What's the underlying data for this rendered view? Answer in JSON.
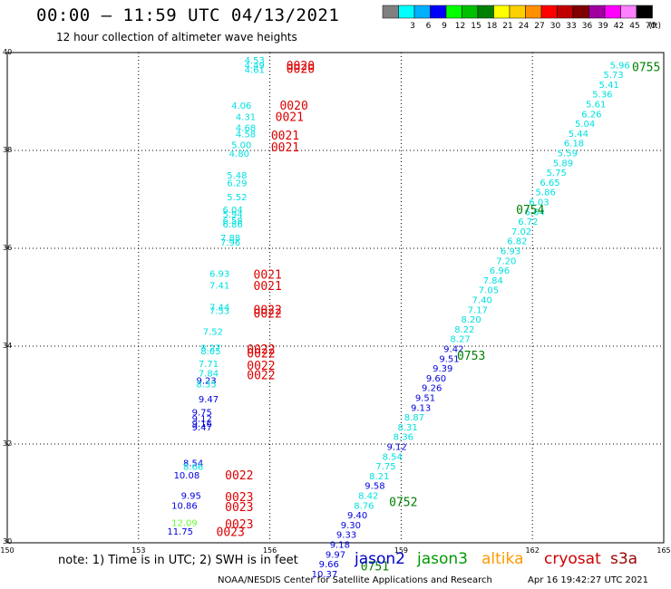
{
  "header": {
    "title": "00:00 – 11:59 UTC 04/13/2021",
    "subtitle": "12 hour collection of altimeter wave heights"
  },
  "legend": {
    "bins": [
      {
        "color": "#808080",
        "label": ""
      },
      {
        "color": "#00ffff",
        "label": "3"
      },
      {
        "color": "#00b0ff",
        "label": "6"
      },
      {
        "color": "#0000ff",
        "label": "9"
      },
      {
        "color": "#00ff00",
        "label": "12"
      },
      {
        "color": "#00c000",
        "label": "15"
      },
      {
        "color": "#008000",
        "label": "18"
      },
      {
        "color": "#ffff00",
        "label": "21"
      },
      {
        "color": "#ffd000",
        "label": "24"
      },
      {
        "color": "#ff9000",
        "label": "27"
      },
      {
        "color": "#ff0000",
        "label": "30"
      },
      {
        "color": "#c00000",
        "label": "33"
      },
      {
        "color": "#800000",
        "label": "36"
      },
      {
        "color": "#a000a0",
        "label": "39"
      },
      {
        "color": "#ff00ff",
        "label": "42"
      },
      {
        "color": "#ff80ff",
        "label": "45"
      },
      {
        "color": "#000000",
        "label": "70"
      }
    ],
    "unit": "(ft)"
  },
  "note": "note: 1) Time is in UTC; 2) SWH is in feet",
  "satellites": [
    {
      "name": "jason2",
      "color": "#0000cc"
    },
    {
      "name": "jason3",
      "color": "#009900"
    },
    {
      "name": "altika",
      "color": "#ff9900"
    },
    {
      "name": "cryosat",
      "color": "#cc0000"
    },
    {
      "name": "s3a",
      "color": "#990000"
    }
  ],
  "footer": {
    "left": "NOAA/NESDIS Center for Satellite Applications and Research",
    "right": "Apr 16 19:42:27 UTC 2021"
  },
  "chart_data": {
    "type": "scatter",
    "xlim": [
      150,
      165
    ],
    "ylim": [
      30,
      40
    ],
    "x_ticks": [
      "150",
      "153",
      "156",
      "159",
      "162",
      "165"
    ],
    "y_ticks": [
      "30",
      "32",
      "34",
      "36",
      "38",
      "40"
    ],
    "grid": true,
    "swh_points": [
      {
        "lon": 155.65,
        "lat": 39.78,
        "swh": "4.53",
        "color": "#00e0e0"
      },
      {
        "lon": 155.65,
        "lat": 39.68,
        "swh": "4.49",
        "color": "#00e0e0"
      },
      {
        "lon": 155.65,
        "lat": 39.58,
        "swh": "4.61",
        "color": "#00e0e0"
      },
      {
        "lon": 155.35,
        "lat": 38.85,
        "swh": "4.06",
        "color": "#00e0e0"
      },
      {
        "lon": 155.45,
        "lat": 38.62,
        "swh": "4.31",
        "color": "#00e0e0"
      },
      {
        "lon": 155.45,
        "lat": 38.4,
        "swh": "4.68",
        "color": "#00e0e0"
      },
      {
        "lon": 155.45,
        "lat": 38.27,
        "swh": "4.58",
        "color": "#00e0e0"
      },
      {
        "lon": 155.35,
        "lat": 38.05,
        "swh": "5.00",
        "color": "#00e0e0"
      },
      {
        "lon": 155.3,
        "lat": 37.87,
        "swh": "4.80",
        "color": "#00e0e0"
      },
      {
        "lon": 155.25,
        "lat": 37.43,
        "swh": "5.48",
        "color": "#00e0e0"
      },
      {
        "lon": 155.25,
        "lat": 37.27,
        "swh": "6.29",
        "color": "#00e0e0"
      },
      {
        "lon": 155.25,
        "lat": 36.98,
        "swh": "5.52",
        "color": "#00e0e0"
      },
      {
        "lon": 155.15,
        "lat": 36.72,
        "swh": "6.04",
        "color": "#00e0e0"
      },
      {
        "lon": 155.15,
        "lat": 36.63,
        "swh": "5.94",
        "color": "#00e0e0"
      },
      {
        "lon": 155.15,
        "lat": 36.5,
        "swh": "6.58",
        "color": "#00e0e0"
      },
      {
        "lon": 155.15,
        "lat": 36.43,
        "swh": "6.86",
        "color": "#00e0e0"
      },
      {
        "lon": 155.1,
        "lat": 36.15,
        "swh": "7.88",
        "color": "#00e0e0"
      },
      {
        "lon": 155.1,
        "lat": 36.06,
        "swh": "7.96",
        "color": "#00e0e0"
      },
      {
        "lon": 154.85,
        "lat": 35.42,
        "swh": "6.93",
        "color": "#00e0e0"
      },
      {
        "lon": 154.85,
        "lat": 35.18,
        "swh": "7.41",
        "color": "#00e0e0"
      },
      {
        "lon": 154.85,
        "lat": 34.73,
        "swh": "7.44",
        "color": "#00e0e0"
      },
      {
        "lon": 154.85,
        "lat": 34.66,
        "swh": "7.53",
        "color": "#00e0e0"
      },
      {
        "lon": 154.7,
        "lat": 34.23,
        "swh": "7.52",
        "color": "#00e0e0"
      },
      {
        "lon": 154.65,
        "lat": 33.9,
        "swh": "8.27",
        "color": "#00e0e0"
      },
      {
        "lon": 154.65,
        "lat": 33.83,
        "swh": "8.05",
        "color": "#00e0e0"
      },
      {
        "lon": 154.6,
        "lat": 33.57,
        "swh": "7.71",
        "color": "#00e0e0"
      },
      {
        "lon": 154.6,
        "lat": 33.38,
        "swh": "7.84",
        "color": "#00e0e0"
      },
      {
        "lon": 154.55,
        "lat": 33.23,
        "swh": "9.23",
        "color": "#0000dd"
      },
      {
        "lon": 154.55,
        "lat": 33.16,
        "swh": "8.35",
        "color": "#00e0e0"
      },
      {
        "lon": 154.6,
        "lat": 32.85,
        "swh": "9.47",
        "color": "#0000dd"
      },
      {
        "lon": 154.45,
        "lat": 32.58,
        "swh": "9.75",
        "color": "#0000dd"
      },
      {
        "lon": 154.45,
        "lat": 32.45,
        "swh": "9.12",
        "color": "#0000dd"
      },
      {
        "lon": 154.45,
        "lat": 32.35,
        "swh": "9.16",
        "color": "#0000dd"
      },
      {
        "lon": 154.45,
        "lat": 32.28,
        "swh": "9.47",
        "color": "#0000dd"
      },
      {
        "lon": 154.25,
        "lat": 31.55,
        "swh": "8.54",
        "color": "#0000dd"
      },
      {
        "lon": 154.25,
        "lat": 31.47,
        "swh": "8.66",
        "color": "#00e0e0"
      },
      {
        "lon": 154.1,
        "lat": 31.3,
        "swh": "10.08",
        "color": "#0000dd"
      },
      {
        "lon": 154.2,
        "lat": 30.88,
        "swh": "9.95",
        "color": "#0000dd"
      },
      {
        "lon": 154.05,
        "lat": 30.68,
        "swh": "10.86",
        "color": "#0000dd"
      },
      {
        "lon": 154.05,
        "lat": 30.32,
        "swh": "12.09",
        "color": "#66ff33"
      },
      {
        "lon": 153.95,
        "lat": 30.15,
        "swh": "11.75",
        "color": "#0000dd"
      },
      {
        "lon": 164.0,
        "lat": 39.68,
        "swh": "5.96",
        "color": "#00e0e0"
      },
      {
        "lon": 163.85,
        "lat": 39.48,
        "swh": "5.73",
        "color": "#00e0e0"
      },
      {
        "lon": 163.75,
        "lat": 39.28,
        "swh": "5.41",
        "color": "#00e0e0"
      },
      {
        "lon": 163.6,
        "lat": 39.08,
        "swh": "5.36",
        "color": "#00e0e0"
      },
      {
        "lon": 163.45,
        "lat": 38.88,
        "swh": "5.61",
        "color": "#00e0e0"
      },
      {
        "lon": 163.35,
        "lat": 38.68,
        "swh": "6.26",
        "color": "#00e0e0"
      },
      {
        "lon": 163.2,
        "lat": 38.48,
        "swh": "5.04",
        "color": "#00e0e0"
      },
      {
        "lon": 163.05,
        "lat": 38.28,
        "swh": "5.44",
        "color": "#00e0e0"
      },
      {
        "lon": 162.95,
        "lat": 38.08,
        "swh": "6.18",
        "color": "#00e0e0"
      },
      {
        "lon": 162.8,
        "lat": 37.88,
        "swh": "5.59",
        "color": "#00e0e0"
      },
      {
        "lon": 162.7,
        "lat": 37.68,
        "swh": "5.89",
        "color": "#00e0e0"
      },
      {
        "lon": 162.55,
        "lat": 37.48,
        "swh": "5.75",
        "color": "#00e0e0"
      },
      {
        "lon": 162.4,
        "lat": 37.28,
        "swh": "6.65",
        "color": "#00e0e0"
      },
      {
        "lon": 162.3,
        "lat": 37.08,
        "swh": "5.86",
        "color": "#00e0e0"
      },
      {
        "lon": 162.15,
        "lat": 36.88,
        "swh": "6.03",
        "color": "#00e0e0"
      },
      {
        "lon": 162.05,
        "lat": 36.68,
        "swh": "6.64",
        "color": "#00e0e0"
      },
      {
        "lon": 161.9,
        "lat": 36.48,
        "swh": "6.72",
        "color": "#00e0e0"
      },
      {
        "lon": 161.75,
        "lat": 36.28,
        "swh": "7.02",
        "color": "#00e0e0"
      },
      {
        "lon": 161.65,
        "lat": 36.08,
        "swh": "6.82",
        "color": "#00e0e0"
      },
      {
        "lon": 161.5,
        "lat": 35.88,
        "swh": "6.93",
        "color": "#00e0e0"
      },
      {
        "lon": 161.4,
        "lat": 35.68,
        "swh": "7.20",
        "color": "#00e0e0"
      },
      {
        "lon": 161.25,
        "lat": 35.48,
        "swh": "6.96",
        "color": "#00e0e0"
      },
      {
        "lon": 161.1,
        "lat": 35.28,
        "swh": "7.84",
        "color": "#00e0e0"
      },
      {
        "lon": 161.0,
        "lat": 35.08,
        "swh": "7.05",
        "color": "#00e0e0"
      },
      {
        "lon": 160.85,
        "lat": 34.88,
        "swh": "7.40",
        "color": "#00e0e0"
      },
      {
        "lon": 160.75,
        "lat": 34.68,
        "swh": "7.17",
        "color": "#00e0e0"
      },
      {
        "lon": 160.6,
        "lat": 34.48,
        "swh": "8.20",
        "color": "#00e0e0"
      },
      {
        "lon": 160.45,
        "lat": 34.28,
        "swh": "8.22",
        "color": "#00e0e0"
      },
      {
        "lon": 160.35,
        "lat": 34.08,
        "swh": "8.27",
        "color": "#00e0e0"
      },
      {
        "lon": 160.2,
        "lat": 33.88,
        "swh": "9.42",
        "color": "#0000dd"
      },
      {
        "lon": 160.1,
        "lat": 33.68,
        "swh": "9.51",
        "color": "#0000dd"
      },
      {
        "lon": 159.95,
        "lat": 33.48,
        "swh": "9.39",
        "color": "#0000dd"
      },
      {
        "lon": 159.8,
        "lat": 33.28,
        "swh": "9.60",
        "color": "#0000dd"
      },
      {
        "lon": 159.7,
        "lat": 33.08,
        "swh": "9.26",
        "color": "#0000dd"
      },
      {
        "lon": 159.55,
        "lat": 32.88,
        "swh": "9.51",
        "color": "#0000dd"
      },
      {
        "lon": 159.45,
        "lat": 32.68,
        "swh": "9.13",
        "color": "#0000dd"
      },
      {
        "lon": 159.3,
        "lat": 32.48,
        "swh": "8.87",
        "color": "#00e0e0"
      },
      {
        "lon": 159.15,
        "lat": 32.28,
        "swh": "8.31",
        "color": "#00e0e0"
      },
      {
        "lon": 159.05,
        "lat": 32.08,
        "swh": "8.36",
        "color": "#00e0e0"
      },
      {
        "lon": 158.9,
        "lat": 31.88,
        "swh": "9.12",
        "color": "#0000dd"
      },
      {
        "lon": 158.8,
        "lat": 31.68,
        "swh": "8.54",
        "color": "#00e0e0"
      },
      {
        "lon": 158.65,
        "lat": 31.48,
        "swh": "7.75",
        "color": "#00e0e0"
      },
      {
        "lon": 158.5,
        "lat": 31.28,
        "swh": "8.21",
        "color": "#00e0e0"
      },
      {
        "lon": 158.4,
        "lat": 31.08,
        "swh": "9.58",
        "color": "#0000dd"
      },
      {
        "lon": 158.25,
        "lat": 30.88,
        "swh": "8.42",
        "color": "#00e0e0"
      },
      {
        "lon": 158.15,
        "lat": 30.68,
        "swh": "8.76",
        "color": "#00e0e0"
      },
      {
        "lon": 158.0,
        "lat": 30.48,
        "swh": "9.40",
        "color": "#0000dd"
      },
      {
        "lon": 157.85,
        "lat": 30.28,
        "swh": "9.30",
        "color": "#0000dd"
      },
      {
        "lon": 157.75,
        "lat": 30.08,
        "swh": "9.33",
        "color": "#0000dd"
      },
      {
        "lon": 157.6,
        "lat": 29.88,
        "swh": "9.18",
        "color": "#0000dd"
      },
      {
        "lon": 157.5,
        "lat": 29.68,
        "swh": "9.97",
        "color": "#0000dd"
      },
      {
        "lon": 157.35,
        "lat": 29.48,
        "swh": "9.66",
        "color": "#0000dd"
      },
      {
        "lon": 157.25,
        "lat": 29.28,
        "swh": "10.37",
        "color": "#0000dd"
      }
    ],
    "time_labels": [
      {
        "lon": 156.7,
        "lat": 39.65,
        "time": "0020",
        "color": "#dd0000"
      },
      {
        "lon": 156.7,
        "lat": 39.58,
        "time": "0020",
        "color": "#dd0000"
      },
      {
        "lon": 156.55,
        "lat": 38.83,
        "time": "0020",
        "color": "#dd0000"
      },
      {
        "lon": 156.45,
        "lat": 38.6,
        "time": "0021",
        "color": "#dd0000"
      },
      {
        "lon": 156.35,
        "lat": 38.22,
        "time": "0021",
        "color": "#dd0000"
      },
      {
        "lon": 156.35,
        "lat": 37.98,
        "time": "0021",
        "color": "#dd0000"
      },
      {
        "lon": 155.95,
        "lat": 35.38,
        "time": "0021",
        "color": "#dd0000"
      },
      {
        "lon": 155.95,
        "lat": 35.15,
        "time": "0021",
        "color": "#dd0000"
      },
      {
        "lon": 155.95,
        "lat": 34.66,
        "time": "0022",
        "color": "#dd0000"
      },
      {
        "lon": 155.95,
        "lat": 34.58,
        "time": "0022",
        "color": "#dd0000"
      },
      {
        "lon": 155.8,
        "lat": 33.85,
        "time": "0022",
        "color": "#dd0000"
      },
      {
        "lon": 155.8,
        "lat": 33.77,
        "time": "0022",
        "color": "#dd0000"
      },
      {
        "lon": 155.8,
        "lat": 33.52,
        "time": "0022",
        "color": "#dd0000"
      },
      {
        "lon": 155.8,
        "lat": 33.32,
        "time": "0022",
        "color": "#dd0000"
      },
      {
        "lon": 155.3,
        "lat": 31.28,
        "time": "0022",
        "color": "#dd0000"
      },
      {
        "lon": 155.3,
        "lat": 30.83,
        "time": "0023",
        "color": "#dd0000"
      },
      {
        "lon": 155.3,
        "lat": 30.63,
        "time": "0023",
        "color": "#dd0000"
      },
      {
        "lon": 155.3,
        "lat": 30.28,
        "time": "0023",
        "color": "#dd0000"
      },
      {
        "lon": 155.1,
        "lat": 30.12,
        "time": "0023",
        "color": "#dd0000"
      },
      {
        "lon": 164.6,
        "lat": 39.62,
        "time": "0755",
        "color": "#008000"
      },
      {
        "lon": 161.95,
        "lat": 36.7,
        "time": "0754",
        "color": "#008000"
      },
      {
        "lon": 160.6,
        "lat": 33.72,
        "time": "0753",
        "color": "#008000"
      },
      {
        "lon": 159.05,
        "lat": 30.73,
        "time": "0752",
        "color": "#008000"
      },
      {
        "lon": 158.4,
        "lat": 29.42,
        "time": "0751",
        "color": "#008000"
      }
    ]
  }
}
